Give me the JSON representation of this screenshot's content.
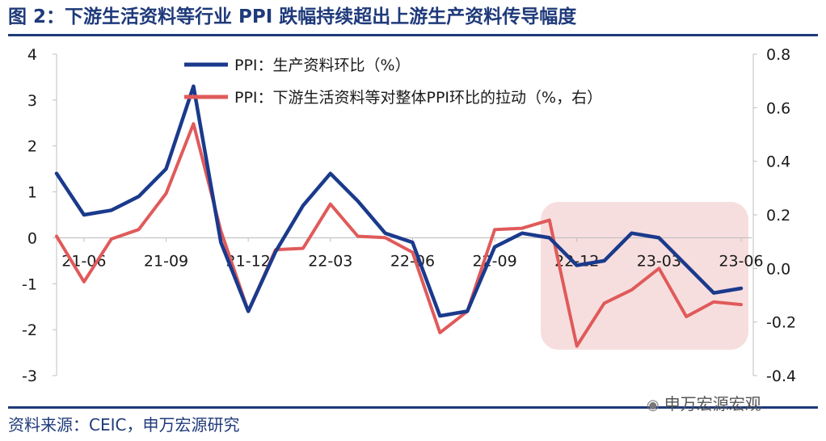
{
  "title": "图 2：下游生活资料等行业 PPI 跌幅持续超出上游生产资料传导幅度",
  "source": "资料来源：CEIC，申万宏源研究",
  "watermark": "申万宏源宏观",
  "colors": {
    "title": "#1f3a7a",
    "series1": "#1a3a8c",
    "series2": "#e05a5a",
    "highlight": "#f7dede"
  },
  "chart_data": {
    "type": "line",
    "x_ticks": [
      "21-06",
      "21-09",
      "21-12",
      "22-03",
      "22-06",
      "22-09",
      "22-12",
      "23-03",
      "23-06"
    ],
    "x": [
      "2021-05",
      "2021-06",
      "2021-07",
      "2021-08",
      "2021-09",
      "2021-10",
      "2021-11",
      "2021-12",
      "2022-01",
      "2022-02",
      "2022-03",
      "2022-04",
      "2022-05",
      "2022-06",
      "2022-07",
      "2022-08",
      "2022-09",
      "2022-10",
      "2022-11",
      "2022-12",
      "2023-01",
      "2023-02",
      "2023-03",
      "2023-04",
      "2023-05",
      "2023-06"
    ],
    "series": [
      {
        "name": "PPI：生产资料环比（%）",
        "axis": "left",
        "values": [
          1.4,
          0.5,
          0.6,
          0.9,
          1.5,
          3.3,
          -0.1,
          -1.6,
          -0.3,
          0.7,
          1.4,
          0.8,
          0.1,
          -0.1,
          -1.7,
          -1.6,
          -0.2,
          0.1,
          0.0,
          -0.6,
          -0.5,
          0.1,
          0.0,
          -0.6,
          -1.2,
          -1.1
        ]
      },
      {
        "name": "PPI：下游生活资料等对整体PPI环比的拉动（%，右）",
        "axis": "right",
        "values": [
          0.12,
          -0.05,
          0.11,
          0.145,
          0.28,
          0.54,
          0.14,
          -0.16,
          0.07,
          0.075,
          0.24,
          0.12,
          0.115,
          0.06,
          -0.24,
          -0.16,
          0.145,
          0.15,
          0.18,
          -0.29,
          -0.13,
          -0.08,
          0.0,
          -0.18,
          -0.125,
          -0.135
        ]
      }
    ],
    "y_left": {
      "ticks": [
        "4",
        "3",
        "2",
        "1",
        "0",
        "-1",
        "-2",
        "-3"
      ],
      "range": [
        -3,
        4
      ]
    },
    "y_right": {
      "ticks": [
        "0.8",
        "0.6",
        "0.4",
        "0.2",
        "0.0",
        "-0.2",
        "-0.4"
      ],
      "range": [
        -0.4,
        0.8
      ]
    },
    "highlight_range": [
      "2022-12",
      "2023-06"
    ],
    "legend_position": "top-center",
    "grid": false
  }
}
